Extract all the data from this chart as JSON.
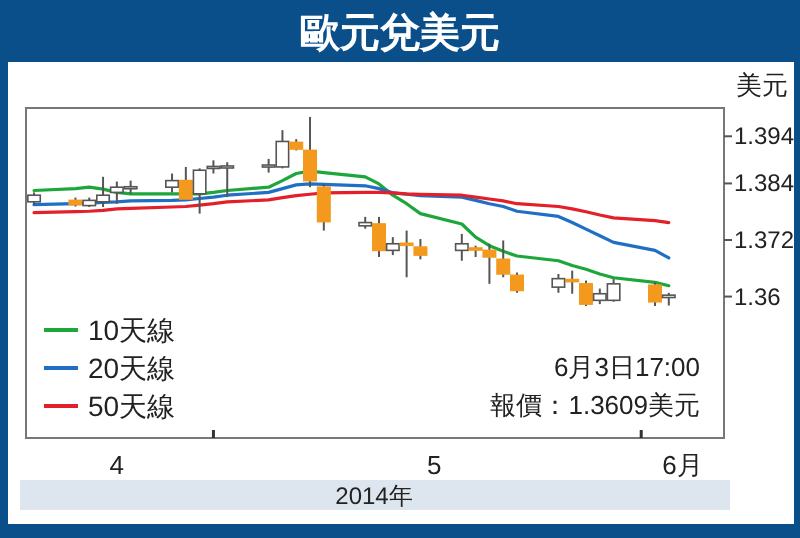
{
  "chart_data": {
    "type": "candlestick",
    "title": "歐元兌美元",
    "xlabel": "2014年",
    "ylabel": "美元",
    "x": [
      "2014-04-18",
      "2014-04-21",
      "2014-04-22",
      "2014-04-23",
      "2014-04-24",
      "2014-04-25",
      "2014-04-28",
      "2014-04-29",
      "2014-04-30",
      "2014-05-01",
      "2014-05-02",
      "2014-05-05",
      "2014-05-06",
      "2014-05-07",
      "2014-05-08",
      "2014-05-09",
      "2014-05-12",
      "2014-05-13",
      "2014-05-14",
      "2014-05-15",
      "2014-05-16",
      "2014-05-19",
      "2014-05-20",
      "2014-05-21",
      "2014-05-22",
      "2014-05-23",
      "2014-05-26",
      "2014-05-27",
      "2014-05-28",
      "2014-05-29",
      "2014-05-30",
      "2014-06-02",
      "2014-06-03"
    ],
    "xlim": [
      "2014-04-17T10:00",
      "2014-06-07"
    ],
    "xticks": [
      {
        "value": "2014-04-24",
        "label": "4"
      },
      {
        "value": "2014-05-01",
        "label": null
      },
      {
        "value": "2014-05-17",
        "label": "5"
      },
      {
        "value": "2014-06-01",
        "label": null
      },
      {
        "value": "2014-06-04",
        "label": "6月"
      }
    ],
    "ylim": [
      1.33,
      1.4
    ],
    "yticks": [
      1.36,
      1.372,
      1.384,
      1.394
    ],
    "ohlc": [
      [
        1.3801,
        1.3821,
        1.3795,
        1.3815
      ],
      [
        1.3804,
        1.381,
        1.3791,
        1.3795
      ],
      [
        1.3793,
        1.381,
        1.379,
        1.3804
      ],
      [
        1.3801,
        1.3854,
        1.379,
        1.3815
      ],
      [
        1.3821,
        1.3844,
        1.3797,
        1.3832
      ],
      [
        1.3831,
        1.3846,
        1.3818,
        1.3833
      ],
      [
        1.3832,
        1.3861,
        1.3821,
        1.3846
      ],
      [
        1.3846,
        1.3875,
        1.3807,
        1.3807
      ],
      [
        1.3818,
        1.3872,
        1.3776,
        1.3868
      ],
      [
        1.3874,
        1.3889,
        1.3861,
        1.3876
      ],
      [
        1.3874,
        1.3885,
        1.3811,
        1.3877
      ],
      [
        1.3876,
        1.3892,
        1.3863,
        1.3879
      ],
      [
        1.3875,
        1.3953,
        1.3872,
        1.3929
      ],
      [
        1.3927,
        1.3934,
        1.391,
        1.3913
      ],
      [
        1.391,
        1.3981,
        1.3832,
        1.3846
      ],
      [
        1.3832,
        1.3839,
        1.374,
        1.3759
      ],
      [
        1.375,
        1.3769,
        1.3744,
        1.3757
      ],
      [
        1.3754,
        1.3769,
        1.3684,
        1.3698
      ],
      [
        1.3698,
        1.3726,
        1.3688,
        1.3712
      ],
      [
        1.3713,
        1.374,
        1.3641,
        1.371
      ],
      [
        1.3705,
        1.3722,
        1.3679,
        1.3688
      ],
      [
        1.3698,
        1.3733,
        1.3676,
        1.3712
      ],
      [
        1.3703,
        1.3708,
        1.3684,
        1.37
      ],
      [
        1.3698,
        1.3712,
        1.3627,
        1.3684
      ],
      [
        1.3679,
        1.3719,
        1.3641,
        1.3648
      ],
      [
        1.3645,
        1.3651,
        1.3608,
        1.3613
      ],
      [
        1.362,
        1.3648,
        1.3608,
        1.3638
      ],
      [
        1.3636,
        1.3655,
        1.3606,
        1.3633
      ],
      [
        1.3627,
        1.3634,
        1.358,
        1.3584
      ],
      [
        1.3592,
        1.3617,
        1.3584,
        1.3606
      ],
      [
        1.3592,
        1.3637,
        1.3589,
        1.3627
      ],
      [
        1.3624,
        1.363,
        1.358,
        1.3589
      ],
      [
        1.3598,
        1.3608,
        1.3581,
        1.3603
      ]
    ],
    "colors": [
      "#ffffff",
      "#f39a1e",
      "#ffffff",
      "#ffffff",
      "#ffffff",
      "#ffffff",
      "#ffffff",
      "#f39a1e",
      "#ffffff",
      "#ffffff",
      "#ffffff",
      "#ffffff",
      "#ffffff",
      "#f39a1e",
      "#f39a1e",
      "#f39a1e",
      "#ffffff",
      "#f39a1e",
      "#ffffff",
      "#f39a1e",
      "#f39a1e",
      "#ffffff",
      "#f39a1e",
      "#f39a1e",
      "#f39a1e",
      "#f39a1e",
      "#ffffff",
      "#f39a1e",
      "#f39a1e",
      "#ffffff",
      "#ffffff",
      "#f39a1e",
      "#ffffff"
    ],
    "series": [
      {
        "name": "10天線",
        "type": "line",
        "color": "#1da63a",
        "values": [
          1.3825,
          1.3829,
          1.3832,
          1.3828,
          1.3821,
          1.3818,
          1.3818,
          1.3818,
          1.3818,
          1.3821,
          1.3825,
          1.3832,
          1.3846,
          1.3861,
          1.3866,
          1.3863,
          1.3854,
          1.3839,
          1.3815,
          1.3797,
          1.3776,
          1.3754,
          1.3726,
          1.3708,
          1.3696,
          1.3686,
          1.3676,
          1.3666,
          1.3658,
          1.3648,
          1.364,
          1.363,
          1.3623
        ]
      },
      {
        "name": "20天線",
        "type": "line",
        "color": "#1f6fc5",
        "values": [
          1.3795,
          1.3797,
          1.3798,
          1.38,
          1.3801,
          1.3803,
          1.3804,
          1.3805,
          1.3808,
          1.3811,
          1.3815,
          1.3821,
          1.3829,
          1.3837,
          1.3839,
          1.3838,
          1.3835,
          1.3829,
          1.382,
          1.3817,
          1.3814,
          1.3811,
          1.3804,
          1.3797,
          1.3791,
          1.3781,
          1.377,
          1.3757,
          1.3743,
          1.3729,
          1.3715,
          1.3698,
          1.3682
        ]
      },
      {
        "name": "50天線",
        "type": "line",
        "color": "#e3202a",
        "values": [
          1.3778,
          1.378,
          1.3781,
          1.3783,
          1.3786,
          1.3787,
          1.379,
          1.3791,
          1.3794,
          1.3797,
          1.3801,
          1.3805,
          1.381,
          1.3814,
          1.3817,
          1.382,
          1.3821,
          1.3821,
          1.382,
          1.3818,
          1.3817,
          1.3815,
          1.3811,
          1.3807,
          1.3803,
          1.3797,
          1.3791,
          1.3786,
          1.378,
          1.3773,
          1.3767,
          1.3761,
          1.3757
        ]
      }
    ],
    "legend": "bottom left",
    "grid": false,
    "annotations": [
      "6月3日17:00",
      "報價：1.3609美元"
    ]
  }
}
